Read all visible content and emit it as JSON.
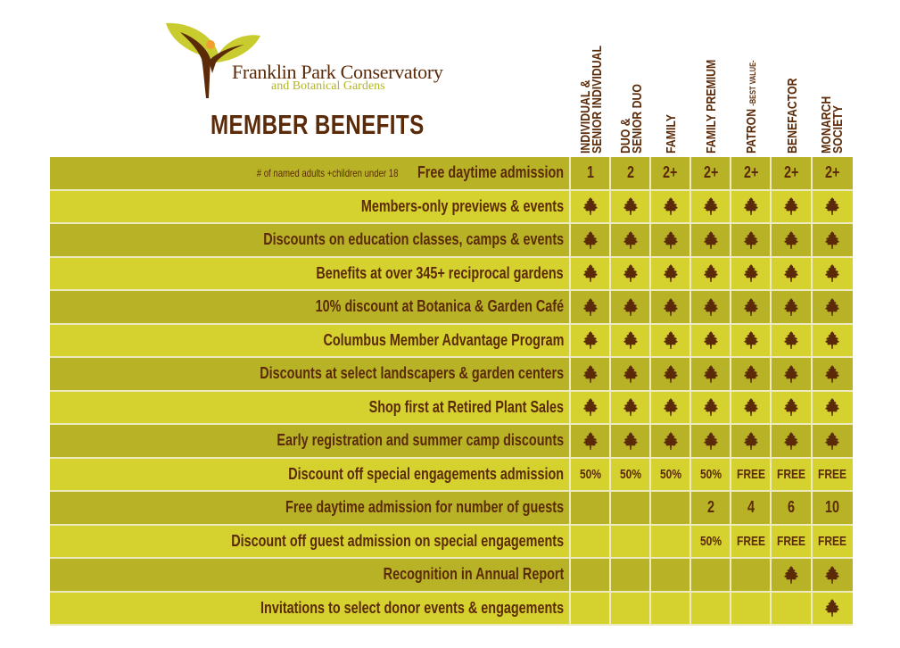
{
  "header": {
    "logo_text": "Franklin Park Conservatory",
    "logo_subtext": "and Botanical Gardens",
    "title": "MEMBER BENEFITS"
  },
  "colors": {
    "brown": "#5b2a08",
    "row_dark": "#b8b226",
    "row_light": "#d5d12e",
    "accent_orange": "#f0a030"
  },
  "columns": [
    {
      "label": "INDIVIDUAL & SENIOR INDIVIDUAL",
      "lines": [
        "SENIOR INDIVIDUAL",
        "INDIVIDUAL &"
      ]
    },
    {
      "label": "DUO & SENIOR DUO",
      "lines": [
        "SENIOR DUO",
        "DUO &"
      ]
    },
    {
      "label": "FAMILY",
      "lines": [
        "FAMILY"
      ]
    },
    {
      "label": "FAMILY PREMIUM",
      "lines": [
        "FAMILY PREMIUM"
      ]
    },
    {
      "label": "PATRON",
      "lines": [
        "PATRON"
      ],
      "sub": "-BEST VALUE-"
    },
    {
      "label": "BENEFACTOR",
      "lines": [
        "BENEFACTOR"
      ]
    },
    {
      "label": "MONARCH SOCIETY",
      "lines": [
        "SOCIETY",
        "MONARCH"
      ]
    }
  ],
  "rows": [
    {
      "label": "Free daytime admission",
      "note": "# of  named adults     +children under 18",
      "values": [
        "1",
        "2",
        "2+",
        "2+",
        "2+",
        "2+",
        "2+"
      ]
    },
    {
      "label": "Members-only previews & events",
      "values": [
        "leaf",
        "leaf",
        "leaf",
        "leaf",
        "leaf",
        "leaf",
        "leaf"
      ]
    },
    {
      "label": "Discounts on education classes, camps & events",
      "values": [
        "leaf",
        "leaf",
        "leaf",
        "leaf",
        "leaf",
        "leaf",
        "leaf"
      ]
    },
    {
      "label": "Benefits at over 345+ reciprocal gardens",
      "values": [
        "leaf",
        "leaf",
        "leaf",
        "leaf",
        "leaf",
        "leaf",
        "leaf"
      ]
    },
    {
      "label": "10% discount at Botanica & Garden Café",
      "values": [
        "leaf",
        "leaf",
        "leaf",
        "leaf",
        "leaf",
        "leaf",
        "leaf"
      ]
    },
    {
      "label": "Columbus Member Advantage Program",
      "values": [
        "leaf",
        "leaf",
        "leaf",
        "leaf",
        "leaf",
        "leaf",
        "leaf"
      ]
    },
    {
      "label": "Discounts at select landscapers & garden centers",
      "values": [
        "leaf",
        "leaf",
        "leaf",
        "leaf",
        "leaf",
        "leaf",
        "leaf"
      ]
    },
    {
      "label": "Shop first at Retired Plant Sales",
      "values": [
        "leaf",
        "leaf",
        "leaf",
        "leaf",
        "leaf",
        "leaf",
        "leaf"
      ]
    },
    {
      "label": "Early registration and summer camp discounts",
      "values": [
        "leaf",
        "leaf",
        "leaf",
        "leaf",
        "leaf",
        "leaf",
        "leaf"
      ]
    },
    {
      "label": "Discount off special engagements admission",
      "values": [
        "50%",
        "50%",
        "50%",
        "50%",
        "FREE",
        "FREE",
        "FREE"
      ]
    },
    {
      "label": "Free daytime admission for number of guests",
      "values": [
        "",
        "",
        "",
        "2",
        "4",
        "6",
        "10"
      ]
    },
    {
      "label": "Discount off guest admission on special engagements",
      "values": [
        "",
        "",
        "",
        "50%",
        "FREE",
        "FREE",
        "FREE"
      ]
    },
    {
      "label": "Recognition in Annual Report",
      "values": [
        "",
        "",
        "",
        "",
        "",
        "leaf",
        "leaf"
      ]
    },
    {
      "label": "Invitations to select donor events & engagements",
      "values": [
        "",
        "",
        "",
        "",
        "",
        "",
        "leaf"
      ]
    }
  ]
}
